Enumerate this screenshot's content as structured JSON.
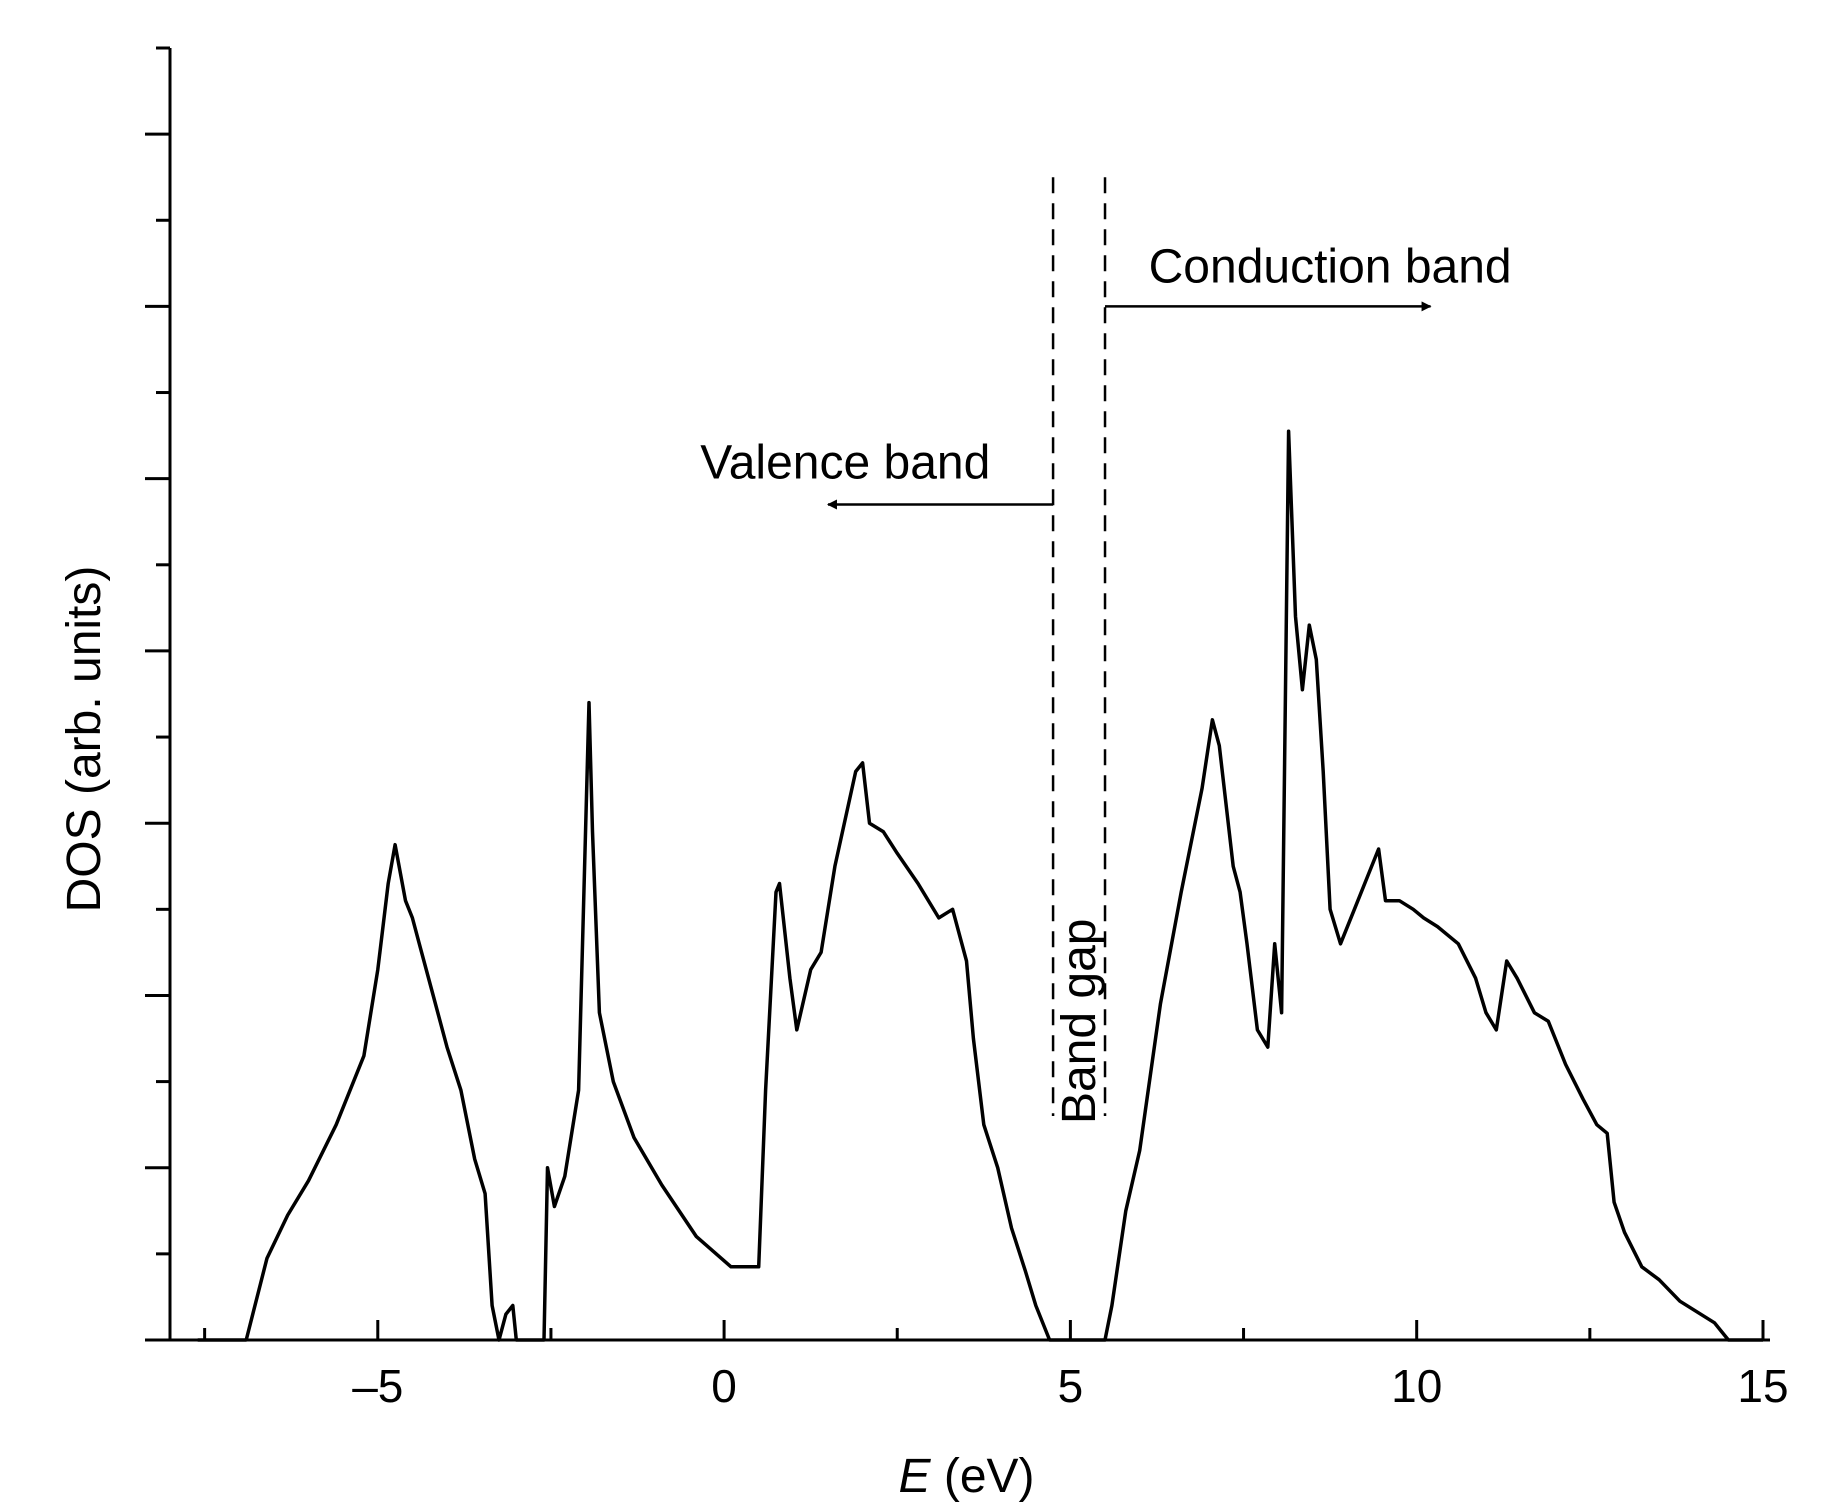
{
  "chart_data": {
    "type": "line",
    "title": "",
    "xlabel_italic": "E",
    "xlabel_rest": " (eV)",
    "ylabel": "DOS (arb. units)",
    "xlim": [
      -8,
      15
    ],
    "ylim": [
      0,
      15
    ],
    "x_ticks": [
      -5,
      0,
      5,
      10,
      15
    ],
    "x_tick_labels": [
      "–5",
      "0",
      "5",
      "10",
      "15"
    ],
    "grid": false,
    "legend": "none",
    "line_color": "#000000",
    "series": [
      {
        "x": [
          -7.6,
          -6.9,
          -6.6,
          -6.3,
          -6.0,
          -5.6,
          -5.2,
          -5.0,
          -4.85,
          -4.75,
          -4.6,
          -4.5,
          -4.4,
          -4.2,
          -4.0,
          -3.8,
          -3.6,
          -3.45,
          -3.35,
          -3.25,
          -3.15,
          -3.05,
          -3.0,
          -2.6,
          -2.55,
          -2.45,
          -2.3,
          -2.1,
          -1.95,
          -1.9,
          -1.8,
          -1.6,
          -1.3,
          -0.9,
          -0.4,
          0.1,
          0.5,
          0.6,
          0.75,
          0.8,
          0.95,
          1.05,
          1.25,
          1.4,
          1.6,
          1.9,
          2.0,
          2.1,
          2.3,
          2.5,
          2.8,
          3.1,
          3.3,
          3.5,
          3.6,
          3.75,
          3.95,
          4.15,
          4.35,
          4.5,
          4.7,
          4.8,
          5.5,
          5.6,
          5.8,
          6.0,
          6.3,
          6.6,
          6.9,
          7.05,
          7.15,
          7.35,
          7.45,
          7.55,
          7.7,
          7.85,
          7.95,
          8.05,
          8.15,
          8.25,
          8.35,
          8.45,
          8.55,
          8.65,
          8.75,
          8.9,
          9.1,
          9.3,
          9.45,
          9.55,
          9.75,
          9.95,
          10.1,
          10.3,
          10.6,
          10.85,
          11.0,
          11.15,
          11.3,
          11.45,
          11.7,
          11.9,
          12.15,
          12.4,
          12.6,
          12.75,
          12.85,
          13.0,
          13.25,
          13.5,
          13.8,
          14.1,
          14.3,
          14.4,
          14.5,
          15.0
        ],
        "y": [
          0,
          0,
          0.95,
          1.45,
          1.85,
          2.5,
          3.3,
          4.3,
          5.3,
          5.75,
          5.1,
          4.9,
          4.6,
          4.0,
          3.4,
          2.9,
          2.1,
          1.7,
          0.4,
          0.0,
          0.3,
          0.4,
          0.0,
          0.0,
          2.0,
          1.55,
          1.9,
          2.9,
          7.4,
          5.9,
          3.8,
          3.0,
          2.35,
          1.8,
          1.2,
          0.85,
          0.85,
          2.9,
          5.2,
          5.3,
          4.2,
          3.6,
          4.3,
          4.5,
          5.5,
          6.6,
          6.7,
          6.0,
          5.9,
          5.65,
          5.3,
          4.9,
          5.0,
          4.4,
          3.5,
          2.5,
          2.0,
          1.3,
          0.8,
          0.4,
          0.0,
          0.0,
          0.0,
          0.4,
          1.5,
          2.2,
          3.9,
          5.2,
          6.4,
          7.2,
          6.9,
          5.5,
          5.2,
          4.6,
          3.6,
          3.4,
          4.6,
          3.8,
          10.55,
          8.4,
          7.55,
          8.3,
          7.9,
          6.6,
          5.0,
          4.6,
          5.0,
          5.4,
          5.7,
          5.1,
          5.1,
          5.0,
          4.9,
          4.8,
          4.6,
          4.2,
          3.8,
          3.6,
          4.4,
          4.2,
          3.8,
          3.7,
          3.2,
          2.8,
          2.5,
          2.4,
          1.6,
          1.25,
          0.85,
          0.7,
          0.45,
          0.3,
          0.2,
          0.1,
          0.0,
          0.0
        ]
      }
    ],
    "annotations": {
      "valence_band": "Valence band",
      "conduction_band": "Conduction band",
      "band_gap": "Band gap",
      "gap_x": [
        4.75,
        5.5
      ],
      "gap_line_ylim": [
        2.6,
        13.5
      ],
      "valence_arrow_x": [
        4.75,
        1.5
      ],
      "valence_arrow_y": 9.7,
      "conduction_arrow_x": [
        5.5,
        10.2
      ],
      "conduction_arrow_y": 12.0
    }
  }
}
